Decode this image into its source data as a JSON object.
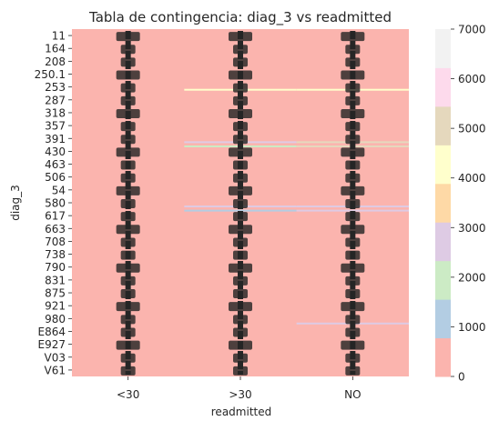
{
  "chart_data": {
    "type": "heatmap",
    "title": "Tabla de contingencia: diag_3 vs readmitted",
    "xlabel": "readmitted",
    "ylabel": "diag_3",
    "columns": [
      "<30",
      ">30",
      "NO"
    ],
    "row_tick_labels": [
      "11",
      "164",
      "208",
      "250.1",
      "253",
      "287",
      "318",
      "357",
      "391",
      "430",
      "463",
      "506",
      "54",
      "580",
      "617",
      "663",
      "708",
      "738",
      "790",
      "831",
      "875",
      "921",
      "980",
      "E864",
      "E927",
      "V03",
      "V61"
    ],
    "color_scale": {
      "min": 0,
      "max": 7000,
      "palette": "Pastel1",
      "colors": [
        "#fbb4ae",
        "#b3cde3",
        "#ccebc5",
        "#decbe4",
        "#fed9a6",
        "#ffffcc",
        "#e5d8bd",
        "#fddaec",
        "#f2f2f2"
      ],
      "ticks": [
        0,
        1000,
        2000,
        3000,
        4000,
        5000,
        6000,
        7000
      ]
    },
    "highlight_rows": [
      {
        "row_fraction": 0.172,
        "values": [
          120,
          4500,
          3900
        ]
      },
      {
        "row_fraction": 0.323,
        "values": [
          300,
          2500,
          5300
        ]
      },
      {
        "row_fraction": 0.335,
        "values": [
          250,
          2100,
          5000
        ]
      },
      {
        "row_fraction": 0.508,
        "values": [
          200,
          2800,
          3100
        ]
      },
      {
        "row_fraction": 0.52,
        "values": [
          150,
          800,
          2600
        ]
      },
      {
        "row_fraction": 0.845,
        "values": [
          100,
          600,
          2700
        ]
      }
    ],
    "annotation": "cell counts annotated in every cell (overlapping, illegible)"
  }
}
